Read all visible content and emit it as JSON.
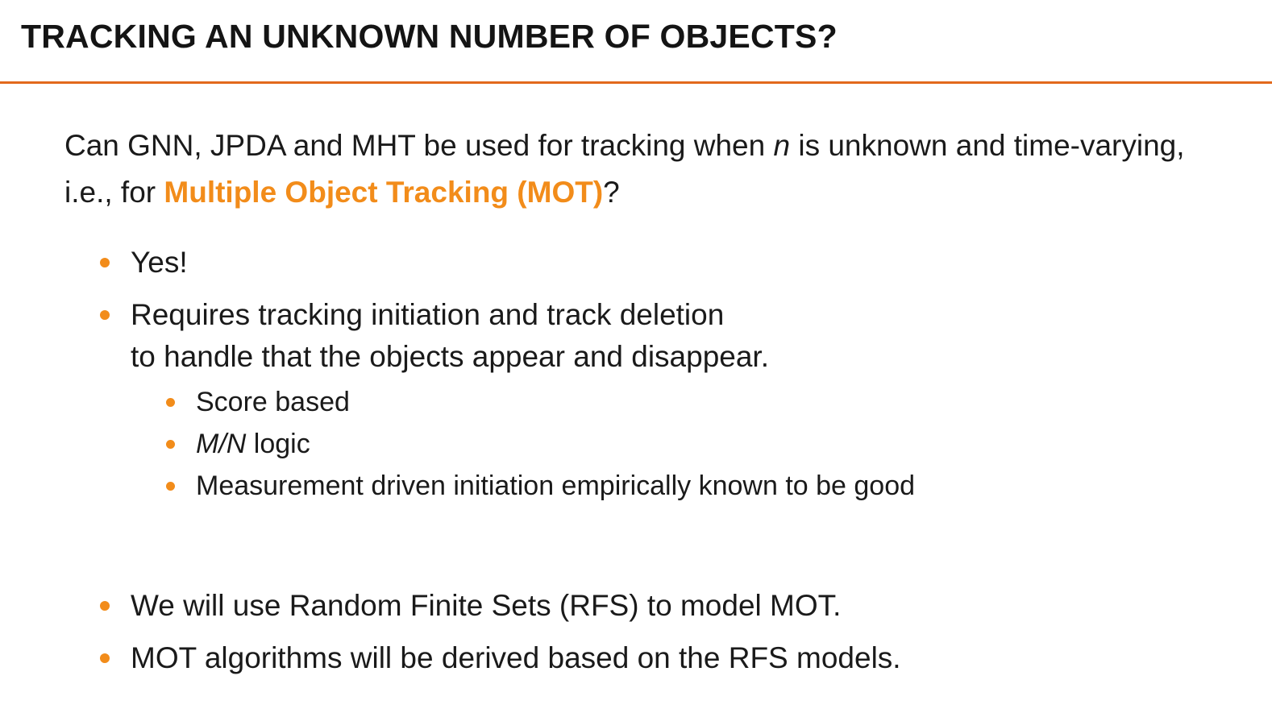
{
  "title": "TRACKING AN UNKNOWN NUMBER OF OBJECTS?",
  "accent_color": "#f28c1a",
  "rule_color": "#e2691c",
  "intro": {
    "part1": "Can GNN, JPDA and MHT be used for tracking when ",
    "var_n": "n",
    "part2": " is unknown and time-varying, i.e., for ",
    "highlight": "Multiple Object Tracking (MOT)",
    "part3": "?"
  },
  "bullets": [
    {
      "text": "Yes!"
    },
    {
      "line1": "Requires tracking initiation and track deletion",
      "line2": "to handle that the objects appear and disappear."
    },
    {
      "text": "We will use Random Finite Sets (RFS) to model MOT."
    },
    {
      "text": "MOT algorithms will be derived based on the RFS models."
    }
  ],
  "sub_bullets": [
    {
      "text": "Score based"
    },
    {
      "math": "M/N",
      "text": " logic"
    },
    {
      "text": "Measurement driven initiation empirically known to be good"
    }
  ]
}
